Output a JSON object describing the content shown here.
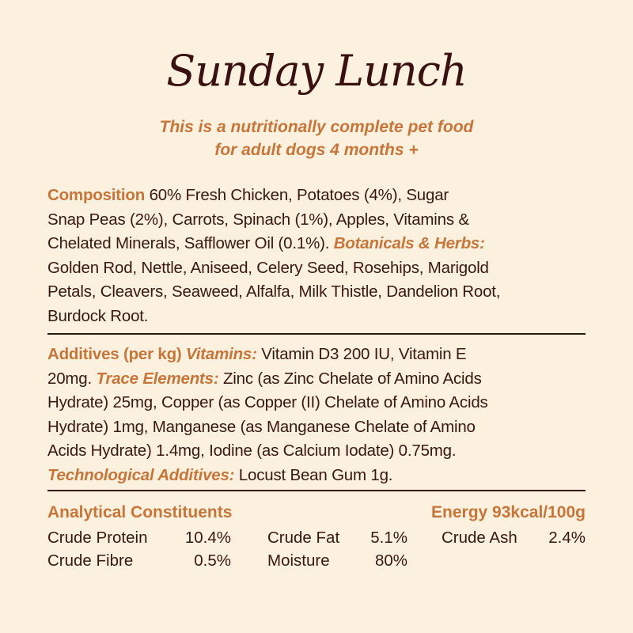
{
  "title": "Sunday Lunch",
  "subtitle": [
    "This is a nutritionally complete pet food",
    "for adult dogs 4 months +"
  ],
  "composition": [
    [
      {
        "s": "h",
        "t": "Composition "
      },
      {
        "s": "n",
        "t": "60% Fresh Chicken, Potatoes (4%), Sugar"
      }
    ],
    [
      {
        "s": "n",
        "t": "Snap Peas (2%), Carrots, Spinach (1%), Apples, Vitamins &"
      }
    ],
    [
      {
        "s": "n",
        "t": "Chelated Minerals, Safflower Oil (0.1%). "
      },
      {
        "s": "i",
        "t": "Botanicals & Herbs:"
      }
    ],
    [
      {
        "s": "n",
        "t": "Golden Rod, Nettle, Aniseed, Celery Seed, Rosehips, Marigold"
      }
    ],
    [
      {
        "s": "n",
        "t": "Petals, Cleavers, Seaweed, Alfalfa, Milk Thistle, Dandelion Root,"
      }
    ],
    [
      {
        "s": "n",
        "t": "Burdock Root."
      }
    ]
  ],
  "additives": [
    [
      {
        "s": "h",
        "t": "Additives (per kg) "
      },
      {
        "s": "i",
        "t": "Vitamins: "
      },
      {
        "s": "n",
        "t": "Vitamin D3 200 IU, Vitamin E"
      }
    ],
    [
      {
        "s": "n",
        "t": "20mg. "
      },
      {
        "s": "i",
        "t": "Trace Elements: "
      },
      {
        "s": "n",
        "t": "Zinc (as Zinc Chelate of Amino Acids"
      }
    ],
    [
      {
        "s": "n",
        "t": "Hydrate) 25mg, Copper (as Copper (II) Chelate of Amino Acids"
      }
    ],
    [
      {
        "s": "n",
        "t": "Hydrate) 1mg, Manganese (as Manganese Chelate of Amino"
      }
    ],
    [
      {
        "s": "n",
        "t": "Acids Hydrate) 1.4mg, Iodine (as Calcium Iodate) 0.75mg."
      }
    ],
    [
      {
        "s": "i",
        "t": "Technological Additives: "
      },
      {
        "s": "n",
        "t": "Locust Bean Gum 1g."
      }
    ]
  ],
  "analytical": {
    "heading": "Analytical Constituents",
    "energy": "Energy 93kcal/100g",
    "rows": [
      [
        {
          "label": "Crude Protein",
          "value": "10.4%"
        },
        {
          "label": "Crude Fat",
          "value": "5.1%"
        },
        {
          "label": "Crude Ash",
          "value": "2.4%"
        }
      ],
      [
        {
          "label": "Crude Fibre",
          "value": "0.5%"
        },
        {
          "label": "Moisture",
          "value": "80%"
        }
      ]
    ]
  },
  "colors": {
    "background": "#fbf1de",
    "accent": "#c8753a",
    "text": "#3a1812"
  }
}
